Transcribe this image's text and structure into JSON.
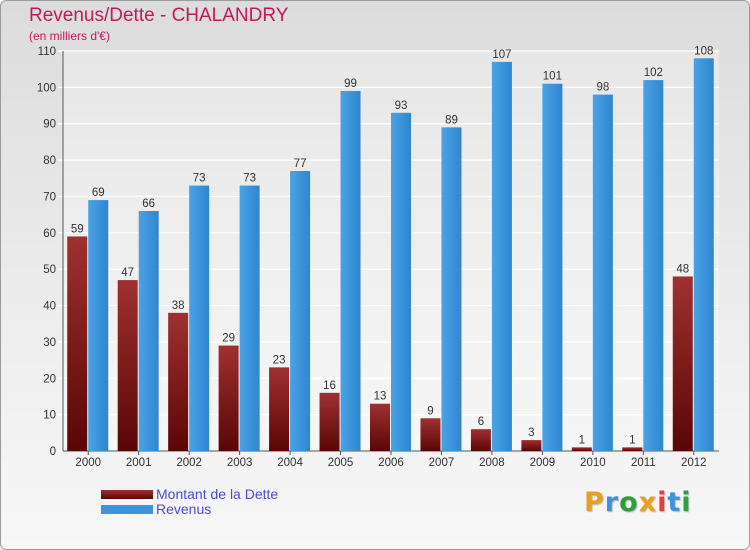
{
  "chart_data": {
    "type": "bar",
    "title": "Revenus/Dette - CHALANDRY",
    "subtitle": "(en milliers d'€)",
    "xlabel": "",
    "ylabel": "",
    "ylim": [
      0,
      110
    ],
    "yticks": [
      0,
      10,
      20,
      30,
      40,
      50,
      60,
      70,
      80,
      90,
      100,
      110
    ],
    "grid": true,
    "legend_position": "bottom-left",
    "categories": [
      "2000",
      "2001",
      "2002",
      "2003",
      "2004",
      "2005",
      "2006",
      "2007",
      "2008",
      "2009",
      "2010",
      "2011",
      "2012"
    ],
    "series": [
      {
        "name": "Montant de la Dette",
        "color": "#7a1010",
        "values": [
          59,
          47,
          38,
          29,
          23,
          16,
          13,
          9,
          6,
          3,
          1,
          1,
          48
        ]
      },
      {
        "name": "Revenus",
        "color": "#3d94dc",
        "values": [
          69,
          66,
          73,
          73,
          77,
          99,
          93,
          89,
          107,
          101,
          98,
          102,
          108
        ]
      }
    ]
  },
  "legend": {
    "debt_label": "Montant de la Dette",
    "revenue_label": "Revenus"
  },
  "branding": {
    "logo_text": "Proxiti",
    "logo_colors": [
      "#e8a020",
      "#3d94dc",
      "#2e9e3e",
      "#e8a020",
      "#e04040",
      "#3d94dc",
      "#2e9e3e"
    ]
  }
}
